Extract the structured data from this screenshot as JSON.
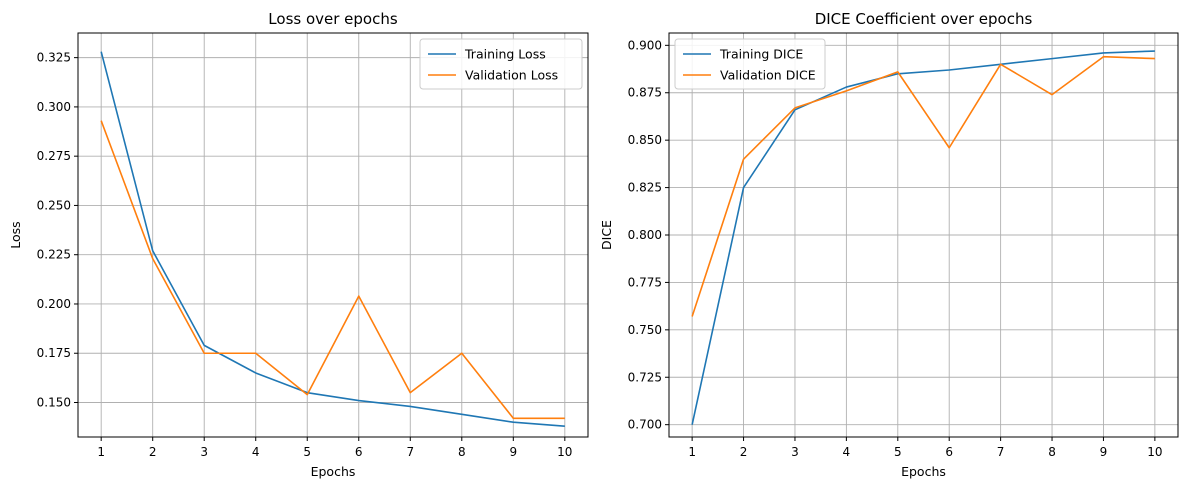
{
  "chart_data": [
    {
      "type": "line",
      "title": "Loss over epochs",
      "xlabel": "Epochs",
      "ylabel": "Loss",
      "x": [
        1,
        2,
        3,
        4,
        5,
        6,
        7,
        8,
        9,
        10
      ],
      "xlim": [
        0.55,
        10.45
      ],
      "ylim": [
        0.1325,
        0.3375
      ],
      "xticks": [
        1,
        2,
        3,
        4,
        5,
        6,
        7,
        8,
        9,
        10
      ],
      "yticks": [
        0.15,
        0.175,
        0.2,
        0.225,
        0.25,
        0.275,
        0.3,
        0.325
      ],
      "ytick_labels": [
        "0.150",
        "0.175",
        "0.200",
        "0.225",
        "0.250",
        "0.275",
        "0.300",
        "0.325"
      ],
      "grid": true,
      "legend": "top-right",
      "series": [
        {
          "name": "Training Loss",
          "color": "#1f77b4",
          "values": [
            0.328,
            0.227,
            0.179,
            0.165,
            0.155,
            0.151,
            0.148,
            0.144,
            0.14,
            0.138
          ]
        },
        {
          "name": "Validation Loss",
          "color": "#ff7f0e",
          "values": [
            0.293,
            0.223,
            0.175,
            0.175,
            0.154,
            0.204,
            0.155,
            0.175,
            0.142,
            0.142
          ]
        }
      ]
    },
    {
      "type": "line",
      "title": "DICE Coefficient over epochs",
      "xlabel": "Epochs",
      "ylabel": "DICE",
      "x": [
        1,
        2,
        3,
        4,
        5,
        6,
        7,
        8,
        9,
        10
      ],
      "xlim": [
        0.55,
        10.45
      ],
      "ylim": [
        0.6935,
        0.9065
      ],
      "xticks": [
        1,
        2,
        3,
        4,
        5,
        6,
        7,
        8,
        9,
        10
      ],
      "yticks": [
        0.7,
        0.725,
        0.75,
        0.775,
        0.8,
        0.825,
        0.85,
        0.875,
        0.9
      ],
      "ytick_labels": [
        "0.700",
        "0.725",
        "0.750",
        "0.775",
        "0.800",
        "0.825",
        "0.850",
        "0.875",
        "0.900"
      ],
      "grid": true,
      "legend": "top-left",
      "series": [
        {
          "name": "Training DICE",
          "color": "#1f77b4",
          "values": [
            0.7,
            0.825,
            0.866,
            0.878,
            0.885,
            0.887,
            0.89,
            0.893,
            0.896,
            0.897
          ]
        },
        {
          "name": "Validation DICE",
          "color": "#ff7f0e",
          "values": [
            0.757,
            0.84,
            0.867,
            0.876,
            0.886,
            0.846,
            0.89,
            0.874,
            0.894,
            0.893
          ]
        }
      ]
    }
  ]
}
